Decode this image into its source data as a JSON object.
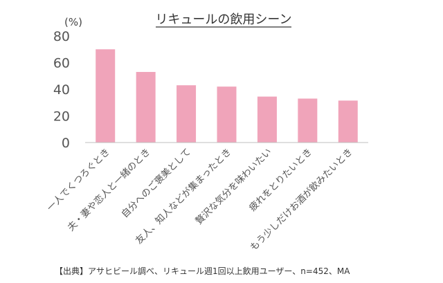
{
  "chart_data": {
    "type": "bar",
    "title": "リキュールの飲用シーン",
    "unit_label": "(%)",
    "ylim": [
      0,
      80
    ],
    "yticks": [
      0,
      20,
      40,
      60,
      80
    ],
    "grid": false,
    "categories": [
      "一人でくつろぐとき",
      "夫・妻や恋人と一緒のとき",
      "自分へのご褒美として",
      "友人、知人などが集まったとき",
      "贅沢な気分を味わいたい",
      "疲れをとりたいとき",
      "もう少しだけお酒が飲みたいとき"
    ],
    "values": [
      70,
      53,
      43,
      42,
      34.5,
      33,
      31.5
    ],
    "bar_color": "#f0a4ba",
    "axis_color": "#bfbfbf",
    "source": "【出典】アサヒビール調べ、リキュール週1回以上飲用ユーザー、n=452、MA"
  }
}
